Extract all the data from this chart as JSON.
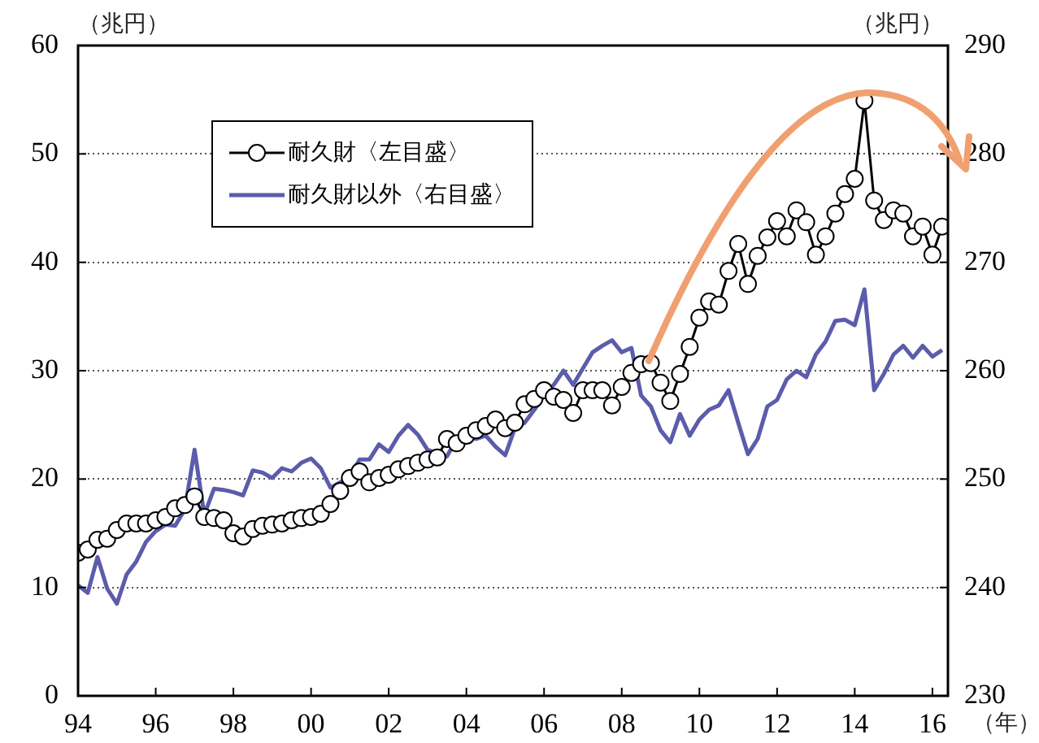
{
  "chart_data": {
    "type": "line",
    "xlabel": "（年）",
    "ylabel": "（兆円）",
    "y2label": "（兆円）",
    "x": [
      1994,
      1994.25,
      1994.5,
      1994.75,
      1995,
      1995.25,
      1995.5,
      1995.75,
      1996,
      1996.25,
      1996.5,
      1996.75,
      1997,
      1997.25,
      1997.5,
      1997.75,
      1998,
      1998.25,
      1998.5,
      1998.75,
      1999,
      1999.25,
      1999.5,
      1999.75,
      2000,
      2000.25,
      2000.5,
      2000.75,
      2001,
      2001.25,
      2001.5,
      2001.75,
      2002,
      2002.25,
      2002.5,
      2002.75,
      2003,
      2003.25,
      2003.5,
      2003.75,
      2004,
      2004.25,
      2004.5,
      2004.75,
      2005,
      2005.25,
      2005.5,
      2005.75,
      2006,
      2006.25,
      2006.5,
      2006.75,
      2007,
      2007.25,
      2007.5,
      2007.75,
      2008,
      2008.25,
      2008.5,
      2008.75,
      2009,
      2009.25,
      2009.5,
      2009.75,
      2010,
      2010.25,
      2010.5,
      2010.75,
      2011,
      2011.25,
      2011.5,
      2011.75,
      2012,
      2012.25,
      2012.5,
      2012.75,
      2013,
      2013.25,
      2013.5,
      2013.75,
      2014,
      2014.25,
      2014.5,
      2014.75,
      2015,
      2015.25,
      2015.5,
      2015.75,
      2016,
      2016.25
    ],
    "series": [
      {
        "name": "耐久財〈左目盛〉",
        "color": "#000000",
        "marker": "circle",
        "axis": "y",
        "values": [
          13.2,
          13.5,
          14.4,
          14.5,
          15.3,
          15.9,
          15.9,
          15.9,
          16.2,
          16.5,
          17.3,
          17.6,
          18.4,
          16.5,
          16.4,
          16.2,
          15.0,
          14.7,
          15.4,
          15.7,
          15.8,
          15.9,
          16.2,
          16.4,
          16.5,
          16.8,
          17.7,
          18.9,
          20.1,
          20.7,
          19.7,
          20.1,
          20.4,
          20.9,
          21.2,
          21.5,
          21.8,
          22.0,
          23.7,
          23.3,
          24.0,
          24.5,
          24.9,
          25.5,
          24.7,
          25.2,
          26.9,
          27.4,
          28.2,
          27.6,
          27.3,
          26.1,
          28.2,
          28.2,
          28.2,
          26.8,
          28.5,
          29.8,
          30.6,
          30.7,
          28.9,
          27.2,
          29.7,
          32.2,
          34.9,
          36.4,
          36.1,
          39.2,
          41.7,
          38.0,
          40.6,
          42.3,
          43.8,
          42.4,
          44.8,
          43.7,
          40.7,
          42.4,
          44.5,
          46.3,
          47.7,
          54.9,
          45.7,
          43.9,
          44.8,
          44.5,
          42.4,
          43.3,
          40.7,
          43.3
        ]
      },
      {
        "name": "耐久財以外〈右目盛〉",
        "color": "#5b5cab",
        "marker": "none",
        "axis": "y2",
        "values": [
          240.2,
          239.5,
          242.8,
          239.9,
          238.5,
          241.2,
          242.4,
          244.2,
          245.2,
          245.8,
          245.7,
          247.2,
          252.7,
          246.7,
          249.1,
          249.0,
          248.8,
          248.5,
          250.8,
          250.6,
          250.1,
          251.0,
          250.7,
          251.5,
          251.9,
          251.0,
          249.2,
          249.7,
          250.2,
          251.8,
          251.8,
          253.2,
          252.5,
          254.0,
          255.0,
          254.1,
          252.7,
          252.4,
          252.1,
          253.7,
          254.1,
          253.7,
          254.0,
          253.0,
          252.2,
          254.7,
          255.2,
          256.4,
          257.7,
          258.7,
          260.0,
          258.7,
          260.2,
          261.7,
          262.3,
          262.8,
          261.7,
          262.1,
          257.7,
          256.7,
          254.5,
          253.4,
          256.0,
          254.0,
          255.5,
          256.4,
          256.8,
          258.2,
          255.2,
          252.3,
          253.7,
          256.7,
          257.3,
          259.2,
          260.0,
          259.4,
          261.5,
          262.7,
          264.6,
          264.7,
          264.2,
          267.5,
          258.2,
          259.7,
          261.5,
          262.3,
          261.2,
          262.3,
          261.3,
          261.9
        ]
      }
    ],
    "xlim": [
      1994,
      2016.4
    ],
    "xticks": [
      {
        "value": 1994,
        "label": "94"
      },
      {
        "value": 1996,
        "label": "96"
      },
      {
        "value": 1998,
        "label": "98"
      },
      {
        "value": 2000,
        "label": "00"
      },
      {
        "value": 2002,
        "label": "02"
      },
      {
        "value": 2004,
        "label": "04"
      },
      {
        "value": 2006,
        "label": "06"
      },
      {
        "value": 2008,
        "label": "08"
      },
      {
        "value": 2010,
        "label": "10"
      },
      {
        "value": 2012,
        "label": "12"
      },
      {
        "value": 2014,
        "label": "14"
      },
      {
        "value": 2016,
        "label": "16"
      }
    ],
    "ylim": [
      0,
      60
    ],
    "yticks": [
      0,
      10,
      20,
      30,
      40,
      50,
      60
    ],
    "y2lim": [
      230,
      290
    ],
    "y2ticks": [
      230,
      240,
      250,
      260,
      270,
      280,
      290
    ],
    "grid": "y",
    "legend": "top left",
    "line_style": "solid"
  }
}
